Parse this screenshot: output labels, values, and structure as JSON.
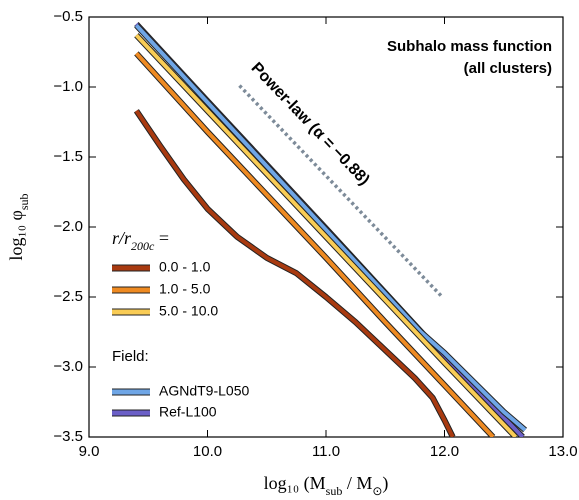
{
  "chart_data": {
    "type": "line",
    "title": [
      "Subhalo mass function",
      "(all clusters)"
    ],
    "x_label": {
      "text": "log₁₀ (M",
      "sub": "sub",
      "mid": " / M",
      "sub2": "⊙",
      "suffix": ")"
    },
    "y_label": {
      "text": "log₁₀ φ",
      "sub": "sub"
    },
    "xlim": [
      9.0,
      13.0
    ],
    "ylim": [
      -3.5,
      -0.5
    ],
    "xticks": [
      {
        "value": 9,
        "label": "9.0"
      },
      {
        "value": 10,
        "label": "10.0"
      },
      {
        "value": 11,
        "label": "11.0"
      },
      {
        "value": 12,
        "label": "12.0"
      },
      {
        "value": 13,
        "label": "13.0"
      }
    ],
    "yticks": [
      {
        "value": -3.5,
        "label": "−3.5"
      },
      {
        "value": -3.0,
        "label": "−3.0"
      },
      {
        "value": -2.5,
        "label": "−2.5"
      },
      {
        "value": -2.0,
        "label": "−2.0"
      },
      {
        "value": -1.5,
        "label": "−1.5"
      },
      {
        "value": -1.0,
        "label": "−1.0"
      },
      {
        "value": -0.5,
        "label": "−0.5"
      }
    ],
    "legend": {
      "title": {
        "text": "r/r",
        "sub": "200c",
        "suffix": " ="
      },
      "field_title": "Field:"
    },
    "series": [
      {
        "name": "0.0 - 1.0",
        "color": "#a83a10",
        "field": false,
        "x": [
          9.4,
          9.6,
          9.8,
          10.0,
          10.25,
          10.5,
          10.75,
          11.0,
          11.25,
          11.5,
          11.75,
          11.9,
          12.0,
          12.07
        ],
        "values": [
          -1.17,
          -1.42,
          -1.66,
          -1.87,
          -2.07,
          -2.22,
          -2.33,
          -2.5,
          -2.68,
          -2.88,
          -3.08,
          -3.22,
          -3.38,
          -3.5
        ]
      },
      {
        "name": "1.0 - 5.0",
        "color": "#ee8a22",
        "field": false,
        "x": [
          9.4,
          10.0,
          10.5,
          11.0,
          11.5,
          12.0,
          12.41
        ],
        "values": [
          -0.76,
          -1.32,
          -1.77,
          -2.22,
          -2.68,
          -3.13,
          -3.5
        ]
      },
      {
        "name": "5.0 - 10.0",
        "color": "#f9cc55",
        "field": false,
        "x": [
          9.4,
          10.0,
          11.0,
          12.0,
          12.6
        ],
        "values": [
          -0.63,
          -1.17,
          -2.07,
          -2.97,
          -3.5
        ]
      },
      {
        "name": "AGNdT9-L050",
        "color": "#6fa6e6",
        "field": true,
        "x": [
          9.4,
          10.0,
          11.0,
          11.8,
          12.0,
          12.5,
          12.68
        ],
        "values": [
          -0.56,
          -1.11,
          -2.02,
          -2.75,
          -2.9,
          -3.32,
          -3.45
        ]
      },
      {
        "name": "Ref-L100",
        "color": "#6b5fc7",
        "field": true,
        "x": [
          9.4,
          10.0,
          11.0,
          12.0,
          12.66
        ],
        "values": [
          -0.55,
          -1.1,
          -2.01,
          -2.93,
          -3.5
        ]
      }
    ],
    "reference_line": {
      "label": "Power-law (α = −0.88)",
      "color": "#7d8b99",
      "style": "dotted",
      "x": [
        10.27,
        11.97
      ],
      "values": [
        -0.99,
        -2.49
      ]
    }
  }
}
